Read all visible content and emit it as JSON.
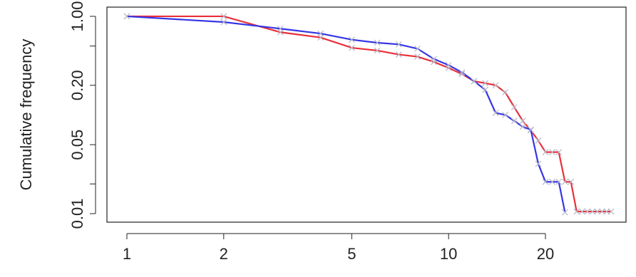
{
  "chart_data": {
    "type": "line",
    "ylabel": "Cumulative frequency",
    "xlog": true,
    "ylog": true,
    "xlim": [
      0.867,
      35.6
    ],
    "ylim": [
      0.00819,
      1.24
    ],
    "xticks": [
      1,
      2,
      5,
      10,
      20
    ],
    "yticks": [
      {
        "value": 1,
        "label": "1.00"
      },
      {
        "value": 0.2,
        "label": "0.20"
      },
      {
        "value": 0.05,
        "label": "0.05"
      },
      {
        "value": 0.01,
        "label": "0.01"
      }
    ],
    "yminorticks": [
      0.5,
      0.02
    ],
    "marker_color": "#b8b8c8",
    "series": [
      {
        "color": "#e8303a",
        "x": [
          1,
          2,
          3,
          4,
          5,
          6,
          7,
          8,
          9,
          10,
          11,
          12,
          13,
          14,
          15,
          16,
          17,
          18,
          19,
          20,
          21,
          22,
          23,
          24,
          25,
          26,
          27,
          28,
          29,
          30,
          31,
          32
        ],
        "values": [
          1.0,
          1.0,
          0.69,
          0.61,
          0.48,
          0.45,
          0.41,
          0.39,
          0.345,
          0.3,
          0.26,
          0.22,
          0.21,
          0.2,
          0.17,
          0.12,
          0.087,
          0.07,
          0.055,
          0.042,
          0.042,
          0.042,
          0.021,
          0.021,
          0.0105,
          0.0105,
          0.0105,
          0.0105,
          0.0105,
          0.0105,
          0.0105,
          0.0105
        ]
      },
      {
        "color": "#3535e6",
        "x": [
          1,
          2,
          3,
          4,
          5,
          6,
          7,
          8,
          9,
          10,
          11,
          12,
          13,
          14,
          15,
          16,
          17,
          18,
          19,
          20,
          21,
          22,
          23
        ],
        "values": [
          1.0,
          0.875,
          0.75,
          0.67,
          0.58,
          0.54,
          0.52,
          0.47,
          0.37,
          0.32,
          0.27,
          0.22,
          0.18,
          0.105,
          0.1,
          0.087,
          0.076,
          0.071,
          0.032,
          0.021,
          0.021,
          0.021,
          0.0103
        ]
      }
    ]
  }
}
